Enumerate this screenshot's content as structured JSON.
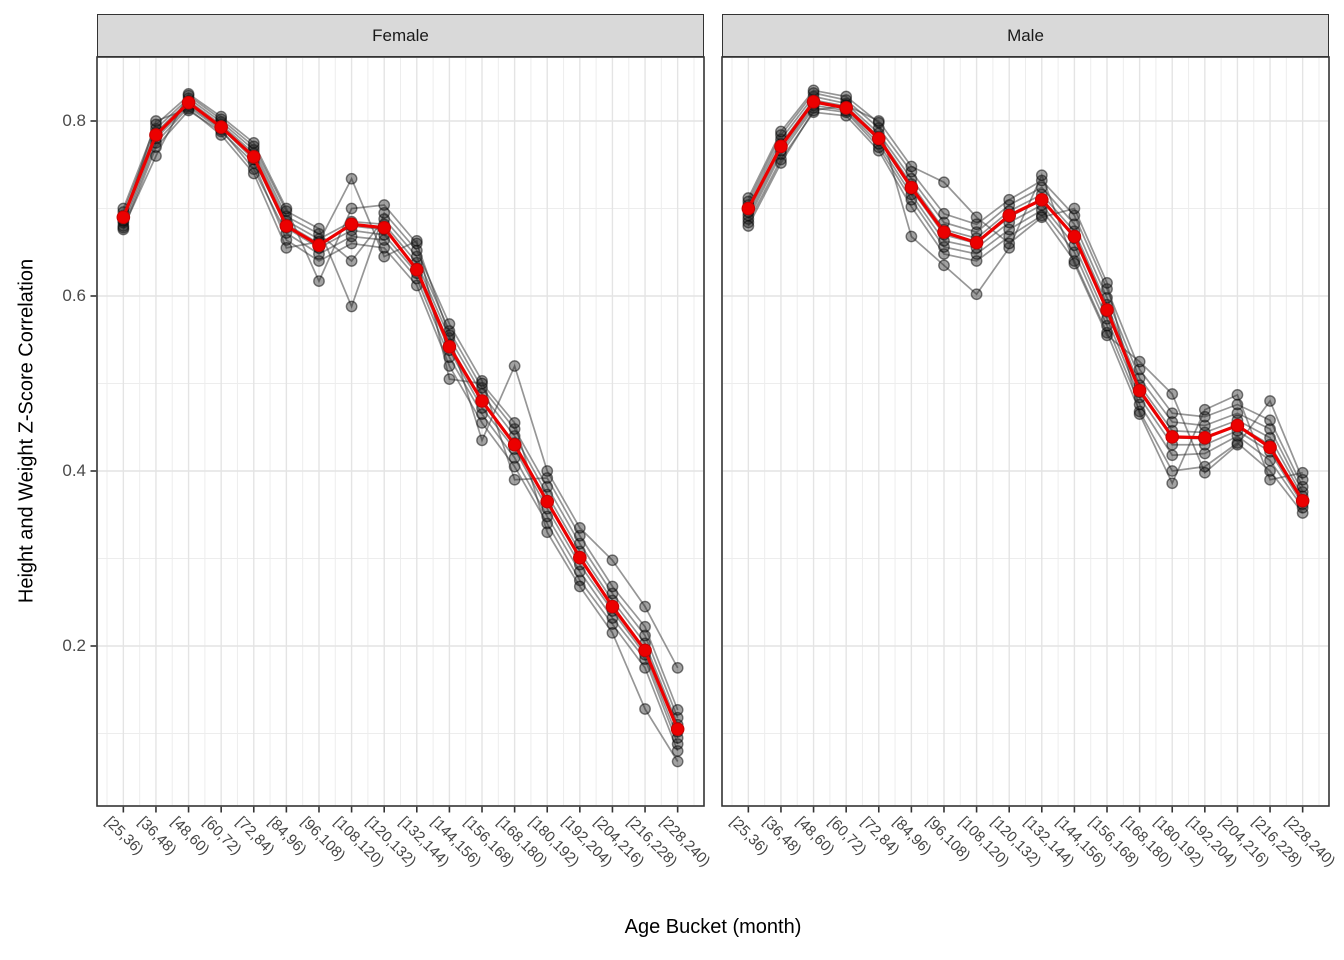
{
  "figure": {
    "x_axis_title": "Age Bucket (month)",
    "y_axis_title": "Height and Weight Z-Score Correlation",
    "y_tick_labels": [
      "0.8",
      "0.6",
      "0.4",
      "0.2"
    ]
  },
  "chart_data": {
    "type": "line",
    "title": "",
    "xlabel": "Age Bucket (month)",
    "ylabel": "Height and Weight Z-Score Correlation",
    "legend": "none",
    "grid": "major and minor, light gray on white panel, theme_bw facet style",
    "y_ticks": [
      0.2,
      0.4,
      0.6,
      0.8
    ],
    "y_minor_ticks": [
      0.1,
      0.3,
      0.5,
      0.7
    ],
    "ylim": [
      0.02,
      0.87
    ],
    "categories": [
      "[25,36)",
      "[36,48)",
      "[48,60)",
      "[60,72)",
      "[72,84)",
      "[84,96)",
      "[96,108)",
      "[108,120)",
      "[120,132)",
      "[132,144)",
      "[144,156)",
      "[156,168)",
      "[168,180)",
      "[180,192)",
      "[192,204)",
      "[204,216)",
      "[216,228)",
      "[228,240)"
    ],
    "colors": {
      "mean_line": "#EC0000",
      "mean_point_edge": "#C40000",
      "replicate": "rgba(45,45,45,0.5)",
      "strip_background": "#d9d9d9",
      "panel_border": "#333333",
      "grid_major": "#e4e4e4",
      "grid_minor": "#ededed"
    },
    "facets": [
      {
        "label": "Female",
        "mean": [
          0.69,
          0.784,
          0.821,
          0.793,
          0.759,
          0.68,
          0.658,
          0.682,
          0.678,
          0.63,
          0.542,
          0.48,
          0.43,
          0.365,
          0.301,
          0.245,
          0.195,
          0.105
        ],
        "replicates": [
          {
            "name": "replicate-1",
            "values": [
              0.676,
              0.77,
              0.812,
              0.788,
              0.752,
              0.664,
              0.64,
              0.66,
              0.655,
              0.612,
              0.52,
              0.455,
              0.405,
              0.34,
              0.275,
              0.225,
              0.175,
              0.08
            ]
          },
          {
            "name": "replicate-2",
            "values": [
              0.68,
              0.775,
              0.816,
              0.79,
              0.745,
              0.672,
              0.648,
              0.668,
              0.664,
              0.62,
              0.53,
              0.465,
              0.415,
              0.348,
              0.285,
              0.232,
              0.185,
              0.088
            ]
          },
          {
            "name": "replicate-3",
            "values": [
              0.684,
              0.78,
              0.818,
              0.792,
              0.756,
              0.678,
              0.655,
              0.675,
              0.67,
              0.626,
              0.538,
              0.472,
              0.425,
              0.357,
              0.293,
              0.24,
              0.19,
              0.095
            ]
          },
          {
            "name": "replicate-4",
            "values": [
              0.688,
              0.783,
              0.82,
              0.794,
              0.76,
              0.682,
              0.66,
              0.68,
              0.676,
              0.632,
              0.545,
              0.48,
              0.432,
              0.365,
              0.3,
              0.246,
              0.196,
              0.102
            ]
          },
          {
            "name": "replicate-5",
            "values": [
              0.692,
              0.787,
              0.823,
              0.796,
              0.763,
              0.686,
              0.665,
              0.685,
              0.682,
              0.638,
              0.552,
              0.488,
              0.44,
              0.373,
              0.308,
              0.252,
              0.203,
              0.11
            ]
          },
          {
            "name": "replicate-6",
            "values": [
              0.696,
              0.791,
              0.826,
              0.799,
              0.767,
              0.691,
              0.671,
              0.64,
              0.688,
              0.645,
              0.56,
              0.495,
              0.448,
              0.382,
              0.317,
              0.26,
              0.212,
              0.118
            ]
          },
          {
            "name": "replicate-7",
            "values": [
              0.7,
              0.796,
              0.829,
              0.802,
              0.771,
              0.697,
              0.677,
              0.588,
              0.695,
              0.652,
              0.568,
              0.503,
              0.39,
              0.392,
              0.326,
              0.268,
              0.222,
              0.127
            ]
          },
          {
            "name": "replicate-8",
            "values": [
              0.678,
              0.76,
              0.831,
              0.805,
              0.775,
              0.7,
              0.617,
              0.7,
              0.704,
              0.66,
              0.555,
              0.435,
              0.52,
              0.4,
              0.335,
              0.298,
              0.245,
              0.175
            ]
          },
          {
            "name": "replicate-9",
            "values": [
              0.686,
              0.8,
              0.814,
              0.784,
              0.74,
              0.655,
              0.662,
              0.734,
              0.645,
              0.663,
              0.505,
              0.5,
              0.455,
              0.33,
              0.268,
              0.215,
              0.128,
              0.068
            ]
          }
        ]
      },
      {
        "label": "Male",
        "mean": [
          0.7,
          0.771,
          0.822,
          0.815,
          0.78,
          0.724,
          0.673,
          0.661,
          0.692,
          0.71,
          0.668,
          0.584,
          0.492,
          0.439,
          0.438,
          0.452,
          0.427,
          0.366
        ],
        "replicates": [
          {
            "name": "replicate-1",
            "values": [
              0.684,
              0.756,
              0.81,
              0.806,
              0.766,
              0.702,
              0.648,
              0.64,
              0.668,
              0.692,
              0.64,
              0.558,
              0.468,
              0.4,
              0.405,
              0.432,
              0.4,
              0.352
            ]
          },
          {
            "name": "replicate-2",
            "values": [
              0.688,
              0.762,
              0.815,
              0.81,
              0.77,
              0.71,
              0.656,
              0.648,
              0.676,
              0.698,
              0.65,
              0.566,
              0.476,
              0.418,
              0.42,
              0.44,
              0.412,
              0.358
            ]
          },
          {
            "name": "replicate-3",
            "values": [
              0.692,
              0.766,
              0.818,
              0.812,
              0.774,
              0.716,
              0.663,
              0.655,
              0.684,
              0.704,
              0.658,
              0.574,
              0.484,
              0.43,
              0.43,
              0.446,
              0.422,
              0.362
            ]
          },
          {
            "name": "replicate-4",
            "values": [
              0.696,
              0.77,
              0.821,
              0.814,
              0.778,
              0.722,
              0.67,
              0.66,
              0.69,
              0.71,
              0.666,
              0.582,
              0.49,
              0.438,
              0.437,
              0.452,
              0.43,
              0.366
            ]
          },
          {
            "name": "replicate-5",
            "values": [
              0.7,
              0.774,
              0.824,
              0.817,
              0.782,
              0.728,
              0.676,
              0.666,
              0.697,
              0.716,
              0.674,
              0.59,
              0.498,
              0.446,
              0.444,
              0.458,
              0.438,
              0.371
            ]
          },
          {
            "name": "replicate-6",
            "values": [
              0.704,
              0.779,
              0.828,
              0.82,
              0.786,
              0.734,
              0.684,
              0.673,
              0.704,
              0.724,
              0.682,
              0.598,
              0.506,
              0.456,
              0.452,
              0.466,
              0.448,
              0.376
            ]
          },
          {
            "name": "replicate-7",
            "values": [
              0.708,
              0.784,
              0.832,
              0.824,
              0.792,
              0.742,
              0.694,
              0.682,
              0.71,
              0.732,
              0.692,
              0.608,
              0.516,
              0.466,
              0.462,
              0.476,
              0.458,
              0.382
            ]
          },
          {
            "name": "replicate-8",
            "values": [
              0.712,
              0.788,
              0.835,
              0.828,
              0.798,
              0.668,
              0.635,
              0.602,
              0.655,
              0.738,
              0.637,
              0.555,
              0.525,
              0.488,
              0.398,
              0.43,
              0.48,
              0.39
            ]
          },
          {
            "name": "replicate-9",
            "values": [
              0.68,
              0.752,
              0.812,
              0.818,
              0.8,
              0.748,
              0.73,
              0.69,
              0.66,
              0.69,
              0.7,
              0.615,
              0.465,
              0.386,
              0.47,
              0.487,
              0.39,
              0.398
            ]
          }
        ]
      }
    ]
  }
}
